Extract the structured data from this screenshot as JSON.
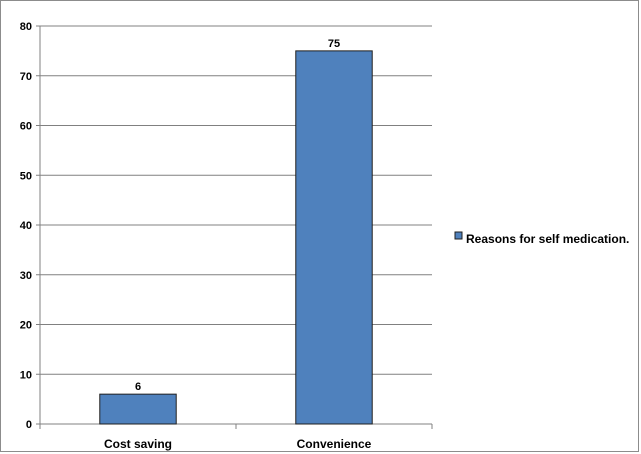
{
  "chart_data": {
    "type": "bar",
    "categories": [
      "Cost saving",
      "Convenience"
    ],
    "series": [
      {
        "name": "Reasons for self medication.",
        "values": [
          6,
          75
        ]
      }
    ],
    "data_labels": [
      "6",
      "75"
    ],
    "ylim": [
      0,
      80
    ],
    "yticks": [
      0,
      10,
      20,
      30,
      40,
      50,
      60,
      70,
      80
    ],
    "ytick_labels": [
      "0",
      "10",
      "20",
      "30",
      "40",
      "50",
      "60",
      "70",
      "80"
    ],
    "grid": true,
    "legend_position": "right",
    "colors": {
      "bar": "#4f81bd",
      "bar_border": "#1f1f1f",
      "grid": "#808080",
      "axis": "#808080",
      "frame": "#8c8c8c"
    }
  }
}
